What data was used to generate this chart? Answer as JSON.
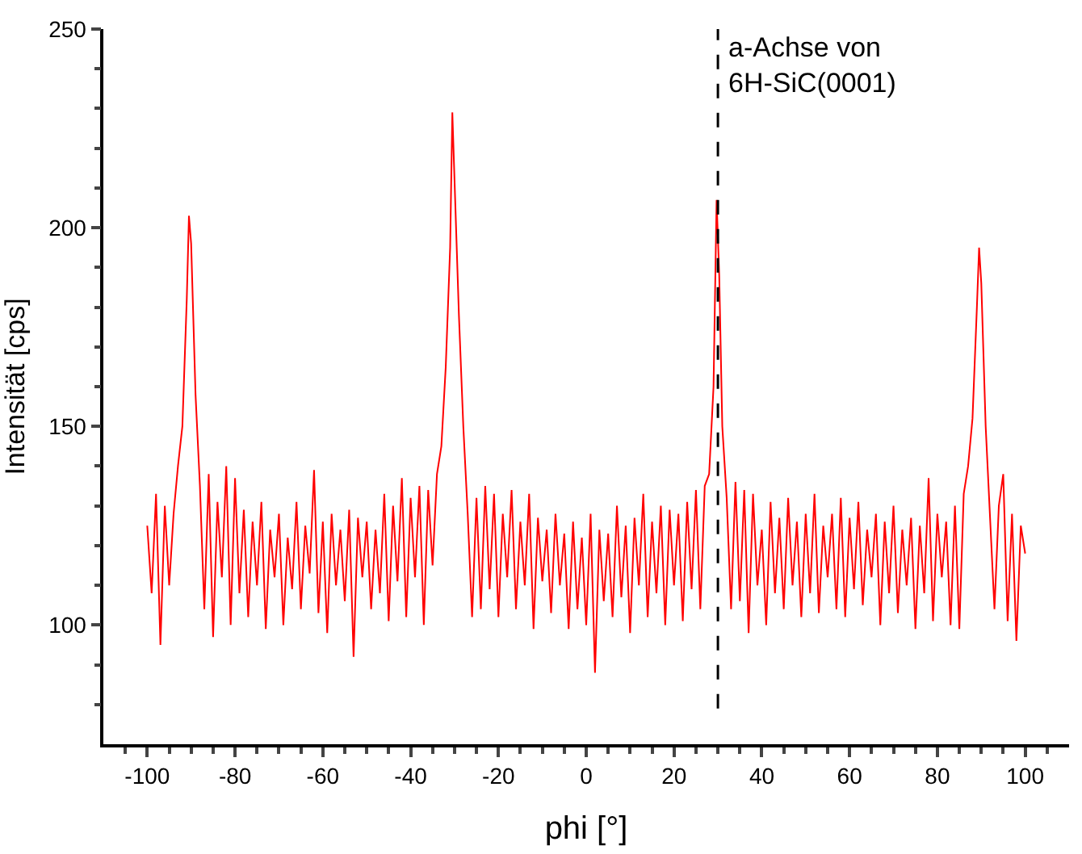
{
  "chart_data": {
    "type": "line",
    "xlabel": "phi [°]",
    "ylabel": "Intensität [cps]",
    "x": [
      -100,
      -99,
      -98,
      -97,
      -96,
      -95,
      -94,
      -93,
      -92,
      -91,
      -90.5,
      -90,
      -89,
      -88,
      -87,
      -86,
      -85,
      -84,
      -83,
      -82,
      -81,
      -80,
      -79,
      -78,
      -77,
      -76,
      -75,
      -74,
      -73,
      -72,
      -71,
      -70,
      -69,
      -68,
      -67,
      -66,
      -65,
      -64,
      -63,
      -62,
      -61,
      -60,
      -59,
      -58,
      -57,
      -56,
      -55,
      -54,
      -53,
      -52,
      -51,
      -50,
      -49,
      -48,
      -47,
      -46,
      -45,
      -44,
      -43,
      -42,
      -41,
      -40,
      -39,
      -38,
      -37,
      -36,
      -35,
      -34,
      -33,
      -32,
      -31,
      -30.5,
      -30,
      -29,
      -28,
      -27,
      -26,
      -25,
      -24,
      -23,
      -22,
      -21,
      -20,
      -19,
      -18,
      -17,
      -16,
      -15,
      -14,
      -13,
      -12,
      -11,
      -10,
      -9,
      -8,
      -7,
      -6,
      -5,
      -4,
      -3,
      -2,
      -1,
      0,
      1,
      2,
      3,
      4,
      5,
      6,
      7,
      8,
      9,
      10,
      11,
      12,
      13,
      14,
      15,
      16,
      17,
      18,
      19,
      20,
      21,
      22,
      23,
      24,
      25,
      26,
      27,
      28,
      29,
      29.7,
      30.3,
      31,
      32,
      33,
      34,
      35,
      36,
      37,
      38,
      39,
      40,
      41,
      42,
      43,
      44,
      45,
      46,
      47,
      48,
      49,
      50,
      51,
      52,
      53,
      54,
      55,
      56,
      57,
      58,
      59,
      60,
      61,
      62,
      63,
      64,
      65,
      66,
      67,
      68,
      69,
      70,
      71,
      72,
      73,
      74,
      75,
      76,
      77,
      78,
      79,
      80,
      81,
      82,
      83,
      84,
      85,
      86,
      87,
      88,
      89,
      89.5,
      90,
      91,
      92,
      93,
      94,
      95,
      96,
      97,
      98,
      99,
      100
    ],
    "series": [
      {
        "color": "#ff0000",
        "values": [
          125,
          108,
          133,
          95,
          130,
          110,
          128,
          140,
          150,
          182,
          203,
          196,
          158,
          135,
          104,
          138,
          97,
          131,
          112,
          140,
          100,
          137,
          108,
          129,
          102,
          126,
          110,
          131,
          99,
          124,
          112,
          128,
          100,
          122,
          109,
          131,
          104,
          125,
          113,
          139,
          103,
          126,
          98,
          128,
          110,
          124,
          106,
          129,
          92,
          127,
          112,
          126,
          104,
          124,
          108,
          133,
          101,
          130,
          111,
          137,
          102,
          132,
          112,
          135,
          100,
          134,
          115,
          138,
          145,
          165,
          195,
          229,
          212,
          178,
          150,
          128,
          102,
          132,
          104,
          135,
          109,
          133,
          102,
          128,
          112,
          134,
          104,
          126,
          110,
          133,
          99,
          127,
          111,
          124,
          103,
          128,
          110,
          123,
          99,
          126,
          104,
          122,
          100,
          128,
          88,
          124,
          106,
          123,
          102,
          130,
          107,
          125,
          98,
          127,
          110,
          133,
          102,
          126,
          108,
          130,
          100,
          129,
          110,
          128,
          101,
          131,
          109,
          134,
          104,
          135,
          138,
          160,
          207,
          188,
          150,
          132,
          104,
          136,
          106,
          134,
          98,
          133,
          110,
          124,
          100,
          131,
          108,
          127,
          104,
          132,
          110,
          126,
          102,
          128,
          108,
          133,
          103,
          125,
          112,
          128,
          104,
          132,
          102,
          127,
          109,
          131,
          105,
          124,
          112,
          128,
          100,
          126,
          108,
          130,
          103,
          124,
          110,
          127,
          99,
          125,
          108,
          137,
          101,
          128,
          112,
          126,
          100,
          130,
          99,
          133,
          140,
          152,
          180,
          195,
          186,
          150,
          127,
          104,
          130,
          138,
          101,
          128,
          96,
          125,
          118
        ]
      }
    ],
    "xlim": [
      -110,
      110
    ],
    "ylim": [
      70,
      250
    ],
    "xticks": [
      {
        "value": -105,
        "label": null
      },
      -100,
      {
        "value": -95,
        "label": null
      },
      {
        "value": -90,
        "label": null
      },
      {
        "value": -85,
        "label": null
      },
      -80,
      {
        "value": -75,
        "label": null
      },
      {
        "value": -70,
        "label": null
      },
      {
        "value": -65,
        "label": null
      },
      -60,
      {
        "value": -55,
        "label": null
      },
      {
        "value": -50,
        "label": null
      },
      {
        "value": -45,
        "label": null
      },
      -40,
      {
        "value": -35,
        "label": null
      },
      {
        "value": -30,
        "label": null
      },
      {
        "value": -25,
        "label": null
      },
      -20,
      {
        "value": -15,
        "label": null
      },
      {
        "value": -10,
        "label": null
      },
      {
        "value": -5,
        "label": null
      },
      0,
      {
        "value": 5,
        "label": null
      },
      {
        "value": 10,
        "label": null
      },
      {
        "value": 15,
        "label": null
      },
      20,
      {
        "value": 25,
        "label": null
      },
      {
        "value": 30,
        "label": null
      },
      {
        "value": 35,
        "label": null
      },
      40,
      {
        "value": 45,
        "label": null
      },
      {
        "value": 50,
        "label": null
      },
      {
        "value": 55,
        "label": null
      },
      60,
      {
        "value": 65,
        "label": null
      },
      {
        "value": 70,
        "label": null
      },
      {
        "value": 75,
        "label": null
      },
      80,
      {
        "value": 85,
        "label": null
      },
      {
        "value": 90,
        "label": null
      },
      {
        "value": 95,
        "label": null
      },
      100,
      {
        "value": 105,
        "label": null
      }
    ],
    "yticks": [
      {
        "value": 80,
        "label": null
      },
      {
        "value": 90,
        "label": null
      },
      100,
      {
        "value": 110,
        "label": null
      },
      {
        "value": 120,
        "label": null
      },
      {
        "value": 130,
        "label": null
      },
      {
        "value": 140,
        "label": null
      },
      150,
      {
        "value": 160,
        "label": null
      },
      {
        "value": 170,
        "label": null
      },
      {
        "value": 180,
        "label": null
      },
      {
        "value": 190,
        "label": null
      },
      200,
      {
        "value": 210,
        "label": null
      },
      {
        "value": 220,
        "label": null
      },
      {
        "value": 230,
        "label": null
      },
      {
        "value": 240,
        "label": null
      },
      250
    ],
    "ref_lines": [
      {
        "axis": "x",
        "value": 30,
        "label": "a-Achse von\n6H-SiC(0001)",
        "color": "#000000",
        "line_style": "dashed"
      }
    ],
    "grid": false,
    "marker": "none",
    "line_style": "solid"
  }
}
